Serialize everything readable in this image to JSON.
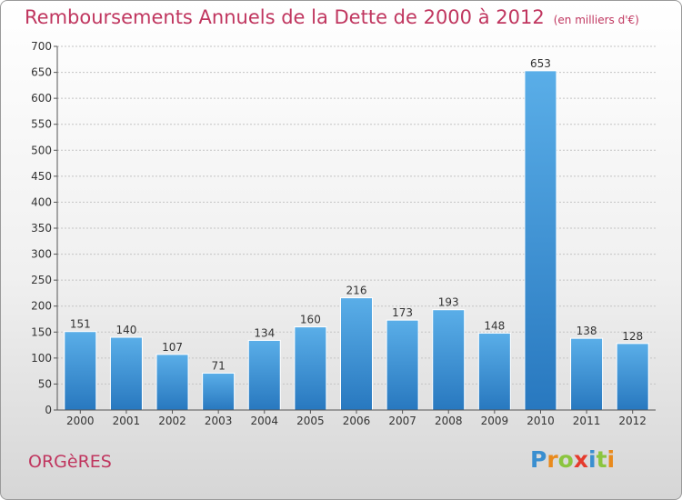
{
  "title": "Remboursements Annuels de la Dette de 2000 à 2012",
  "unit_note": "(en milliers d'€)",
  "place": "ORGèRES",
  "logo": {
    "letters": [
      "P",
      "r",
      "o",
      "x",
      "i",
      "t",
      "i"
    ],
    "colors": [
      "#3a8fd0",
      "#e98a1c",
      "#8bc53f",
      "#e53b2d",
      "#3a8fd0",
      "#8bc53f",
      "#e98a1c"
    ]
  },
  "colors": {
    "bar": "#4a9fe0",
    "bar_dark": "#2b7cc2",
    "title": "#c0365f",
    "grid": "#bdbdbd"
  },
  "chart_data": {
    "type": "bar",
    "categories": [
      "2000",
      "2001",
      "2002",
      "2003",
      "2004",
      "2005",
      "2006",
      "2007",
      "2008",
      "2009",
      "2010",
      "2011",
      "2012"
    ],
    "values": [
      151,
      140,
      107,
      71,
      134,
      160,
      216,
      173,
      193,
      148,
      653,
      138,
      128
    ],
    "ylim": [
      0,
      700
    ],
    "yticks": [
      0,
      50,
      100,
      150,
      200,
      250,
      300,
      350,
      400,
      450,
      500,
      550,
      600,
      650,
      700
    ],
    "grid": true,
    "xlabel": "",
    "ylabel": ""
  }
}
